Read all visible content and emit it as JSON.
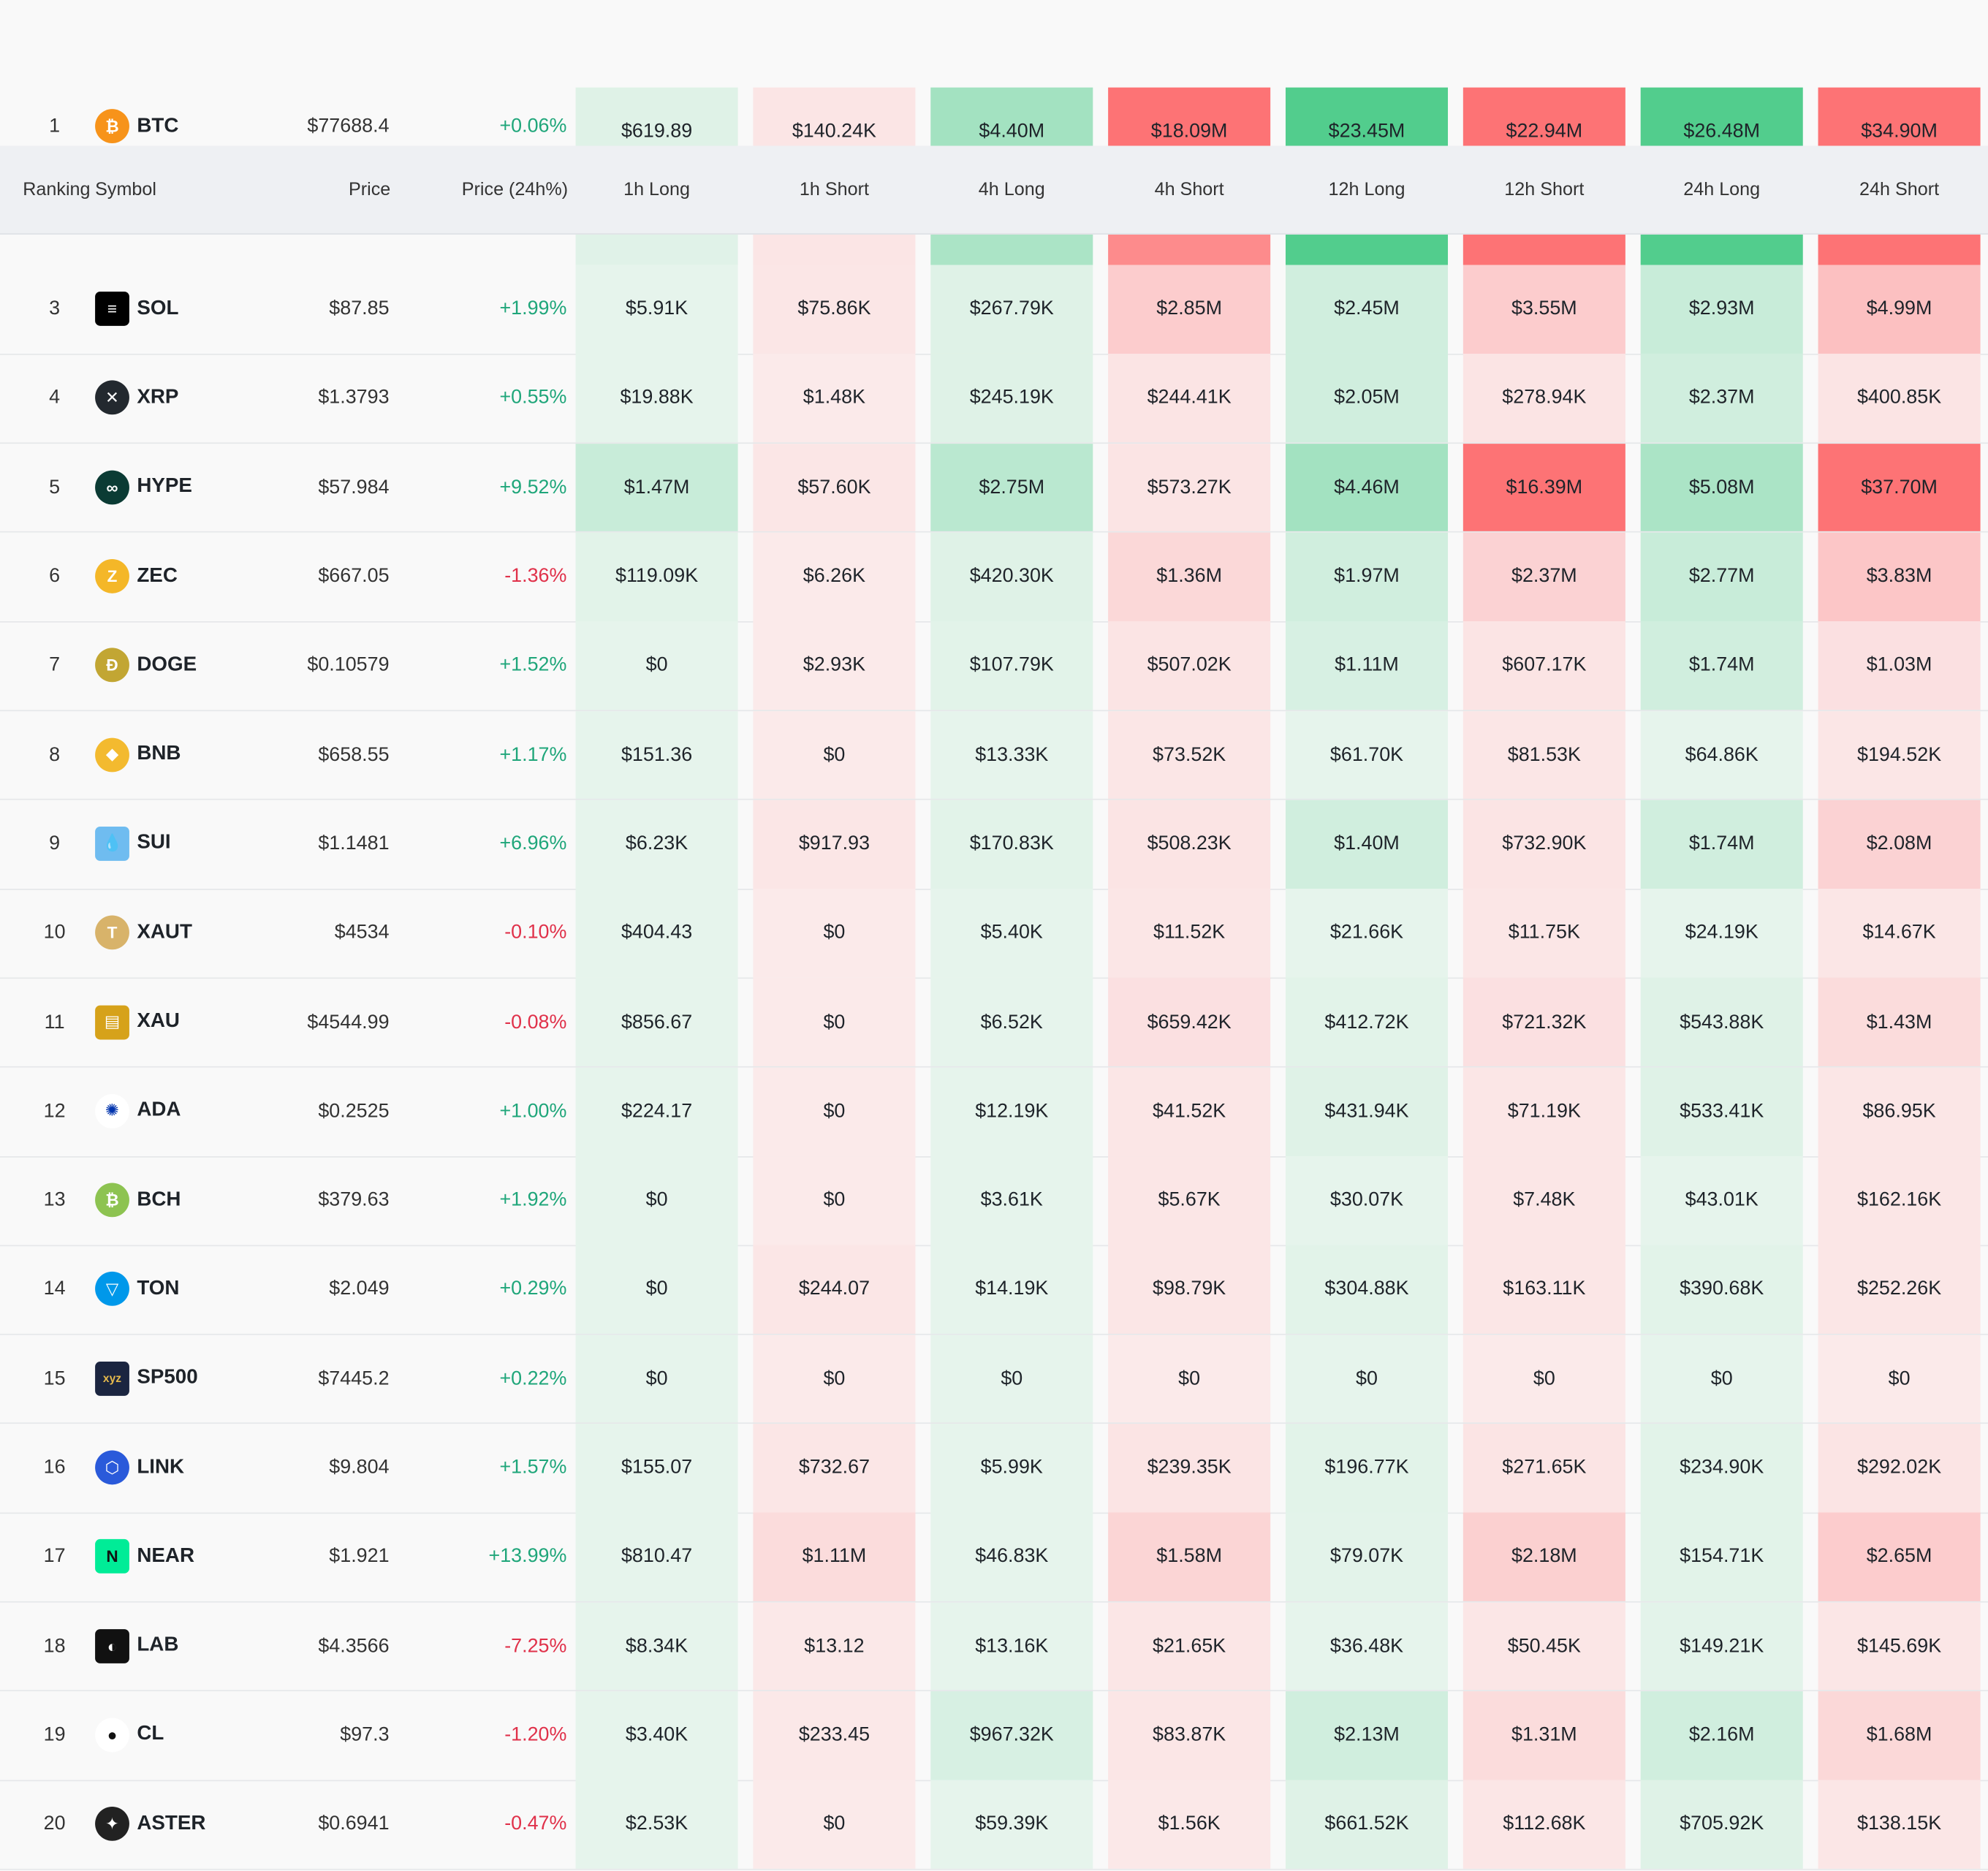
{
  "header": {
    "ranking": "Ranking",
    "symbol": "Symbol",
    "price": "Price",
    "price_change": "Price (24h%)",
    "h1_long": "1h Long",
    "h1_short": "1h Short",
    "h4_long": "4h Long",
    "h4_short": "4h Short",
    "h12_long": "12h Long",
    "h12_short": "12h Short",
    "h24_long": "24h Long",
    "h24_short": "24h Short"
  },
  "colors": {
    "long_base": "#e6f4ec",
    "short_base": "#fbeaea",
    "long_strong": "#52cd8d",
    "short_strong": "#fd7375",
    "up": "#1fa67a",
    "down": "#e0314a"
  },
  "rows": [
    {
      "rank": "1",
      "symbol": "BTC",
      "icon": "btc-icon",
      "price": "$77688.4",
      "change": "+0.06%",
      "dir": "up",
      "cells": [
        "$619.89",
        "$140.24K",
        "$4.40M",
        "$18.09M",
        "$23.45M",
        "$22.94M",
        "$26.48M",
        "$34.90M"
      ],
      "shade": [
        0.05,
        0.04,
        0.45,
        1,
        1,
        1,
        1,
        1
      ]
    },
    {
      "rank": "3",
      "symbol": "SOL",
      "icon": "sol-icon",
      "price": "$87.85",
      "change": "+1.99%",
      "dir": "up",
      "cells": [
        "$5.91K",
        "$75.86K",
        "$267.79K",
        "$2.85M",
        "$2.45M",
        "$3.55M",
        "$2.93M",
        "$4.99M"
      ],
      "shade": [
        0,
        0.03,
        0.05,
        0.25,
        0.15,
        0.25,
        0.2,
        0.35
      ]
    },
    {
      "rank": "4",
      "symbol": "XRP",
      "icon": "xrp-icon",
      "price": "$1.3793",
      "change": "+0.55%",
      "dir": "up",
      "cells": [
        "$19.88K",
        "$1.48K",
        "$245.19K",
        "$244.41K",
        "$2.05M",
        "$278.94K",
        "$2.37M",
        "$400.85K"
      ],
      "shade": [
        0,
        0,
        0.05,
        0.05,
        0.15,
        0.05,
        0.15,
        0.05
      ]
    },
    {
      "rank": "5",
      "symbol": "HYPE",
      "icon": "hype-icon",
      "price": "$57.984",
      "change": "+9.52%",
      "dir": "up",
      "cells": [
        "$1.47M",
        "$57.60K",
        "$2.75M",
        "$573.27K",
        "$4.46M",
        "$16.39M",
        "$5.08M",
        "$37.70M"
      ],
      "shade": [
        0.2,
        0.03,
        0.3,
        0.05,
        0.45,
        1,
        0.4,
        1
      ]
    },
    {
      "rank": "6",
      "symbol": "ZEC",
      "icon": "zec-icon",
      "price": "$667.05",
      "change": "-1.36%",
      "dir": "dn",
      "cells": [
        "$119.09K",
        "$6.26K",
        "$420.30K",
        "$1.36M",
        "$1.97M",
        "$2.37M",
        "$2.77M",
        "$3.83M"
      ],
      "shade": [
        0.03,
        0,
        0.05,
        0.15,
        0.15,
        0.2,
        0.2,
        0.3
      ]
    },
    {
      "rank": "7",
      "symbol": "DOGE",
      "icon": "doge-icon",
      "price": "$0.10579",
      "change": "+1.52%",
      "dir": "up",
      "cells": [
        "$0",
        "$2.93K",
        "$107.79K",
        "$507.02K",
        "$1.11M",
        "$607.17K",
        "$1.74M",
        "$1.03M"
      ],
      "shade": [
        0,
        0,
        0.03,
        0.05,
        0.1,
        0.05,
        0.15,
        0.08
      ]
    },
    {
      "rank": "8",
      "symbol": "BNB",
      "icon": "bnb-icon",
      "price": "$658.55",
      "change": "+1.17%",
      "dir": "up",
      "cells": [
        "$151.36",
        "$0",
        "$13.33K",
        "$73.52K",
        "$61.70K",
        "$81.53K",
        "$64.86K",
        "$194.52K"
      ],
      "shade": [
        0,
        0,
        0,
        0.03,
        0,
        0.03,
        0,
        0.03
      ]
    },
    {
      "rank": "9",
      "symbol": "SUI",
      "icon": "sui-icon",
      "price": "$1.1481",
      "change": "+6.96%",
      "dir": "up",
      "cells": [
        "$6.23K",
        "$917.93",
        "$170.83K",
        "$508.23K",
        "$1.40M",
        "$732.90K",
        "$1.74M",
        "$2.08M"
      ],
      "shade": [
        0,
        0.03,
        0.03,
        0.05,
        0.15,
        0.05,
        0.15,
        0.2
      ]
    },
    {
      "rank": "10",
      "symbol": "XAUT",
      "icon": "xaut-icon",
      "price": "$4534",
      "change": "-0.10%",
      "dir": "dn",
      "cells": [
        "$404.43",
        "$0",
        "$5.40K",
        "$11.52K",
        "$21.66K",
        "$11.75K",
        "$24.19K",
        "$14.67K"
      ],
      "shade": [
        0,
        0,
        0,
        0.03,
        0,
        0.03,
        0,
        0.03
      ]
    },
    {
      "rank": "11",
      "symbol": "XAU",
      "icon": "xau-icon",
      "price": "$4544.99",
      "change": "-0.08%",
      "dir": "dn",
      "cells": [
        "$856.67",
        "$0",
        "$6.52K",
        "$659.42K",
        "$412.72K",
        "$721.32K",
        "$543.88K",
        "$1.43M"
      ],
      "shade": [
        0,
        0,
        0,
        0.08,
        0.03,
        0.08,
        0.05,
        0.12
      ]
    },
    {
      "rank": "12",
      "symbol": "ADA",
      "icon": "ada-icon",
      "price": "$0.2525",
      "change": "+1.00%",
      "dir": "up",
      "cells": [
        "$224.17",
        "$0",
        "$12.19K",
        "$41.52K",
        "$431.94K",
        "$71.19K",
        "$533.41K",
        "$86.95K"
      ],
      "shade": [
        0,
        0,
        0,
        0.03,
        0.05,
        0.03,
        0.05,
        0.03
      ]
    },
    {
      "rank": "13",
      "symbol": "BCH",
      "icon": "bch-icon",
      "price": "$379.63",
      "change": "+1.92%",
      "dir": "up",
      "cells": [
        "$0",
        "$0",
        "$3.61K",
        "$5.67K",
        "$30.07K",
        "$7.48K",
        "$43.01K",
        "$162.16K"
      ],
      "shade": [
        0,
        0,
        0,
        0.03,
        0,
        0.03,
        0,
        0.03
      ]
    },
    {
      "rank": "14",
      "symbol": "TON",
      "icon": "ton-icon",
      "price": "$2.049",
      "change": "+0.29%",
      "dir": "up",
      "cells": [
        "$0",
        "$244.07",
        "$14.19K",
        "$98.79K",
        "$304.88K",
        "$163.11K",
        "$390.68K",
        "$252.26K"
      ],
      "shade": [
        0,
        0.03,
        0,
        0.03,
        0.03,
        0.03,
        0.03,
        0.03
      ]
    },
    {
      "rank": "15",
      "symbol": "SP500",
      "icon": "sp500-icon",
      "price": "$7445.2",
      "change": "+0.22%",
      "dir": "up",
      "cells": [
        "$0",
        "$0",
        "$0",
        "$0",
        "$0",
        "$0",
        "$0",
        "$0"
      ],
      "shade": [
        0,
        0,
        0,
        0,
        0,
        0,
        0,
        0
      ]
    },
    {
      "rank": "16",
      "symbol": "LINK",
      "icon": "link-icon",
      "price": "$9.804",
      "change": "+1.57%",
      "dir": "up",
      "cells": [
        "$155.07",
        "$732.67",
        "$5.99K",
        "$239.35K",
        "$196.77K",
        "$271.65K",
        "$234.90K",
        "$292.02K"
      ],
      "shade": [
        0,
        0.03,
        0,
        0.05,
        0.03,
        0.05,
        0.03,
        0.05
      ]
    },
    {
      "rank": "17",
      "symbol": "NEAR",
      "icon": "near-icon",
      "price": "$1.921",
      "change": "+13.99%",
      "dir": "up",
      "cells": [
        "$810.47",
        "$1.11M",
        "$46.83K",
        "$1.58M",
        "$79.07K",
        "$2.18M",
        "$154.71K",
        "$2.65M"
      ],
      "shade": [
        0,
        0.12,
        0,
        0.18,
        0.02,
        0.22,
        0.03,
        0.25
      ]
    },
    {
      "rank": "18",
      "symbol": "LAB",
      "icon": "lab-icon",
      "price": "$4.3566",
      "change": "-7.25%",
      "dir": "dn",
      "cells": [
        "$8.34K",
        "$13.12",
        "$13.16K",
        "$21.65K",
        "$36.48K",
        "$50.45K",
        "$149.21K",
        "$145.69K"
      ],
      "shade": [
        0,
        0.02,
        0,
        0.03,
        0,
        0.03,
        0.02,
        0.03
      ]
    },
    {
      "rank": "19",
      "symbol": "CL",
      "icon": "cl-icon",
      "price": "$97.3",
      "change": "-1.20%",
      "dir": "dn",
      "cells": [
        "$3.40K",
        "$233.45",
        "$967.32K",
        "$83.87K",
        "$2.13M",
        "$1.31M",
        "$2.16M",
        "$1.68M"
      ],
      "shade": [
        0,
        0.02,
        0.1,
        0.03,
        0.15,
        0.12,
        0.15,
        0.15
      ]
    },
    {
      "rank": "20",
      "symbol": "ASTER",
      "icon": "aster-icon",
      "price": "$0.6941",
      "change": "-0.47%",
      "dir": "dn",
      "cells": [
        "$2.53K",
        "$0",
        "$59.39K",
        "$1.56K",
        "$661.52K",
        "$112.68K",
        "$705.92K",
        "$138.15K"
      ],
      "shade": [
        0,
        0,
        0,
        0.02,
        0.05,
        0.03,
        0.05,
        0.03
      ]
    }
  ],
  "icon_glyphs": {
    "btc-icon": "₿",
    "sol-icon": "≡",
    "xrp-icon": "✕",
    "hype-icon": "∞",
    "zec-icon": "Z",
    "doge-icon": "Ð",
    "bnb-icon": "◆",
    "sui-icon": "💧",
    "xaut-icon": "T",
    "xau-icon": "▤",
    "ada-icon": "✺",
    "bch-icon": "₿",
    "ton-icon": "▽",
    "sp500-icon": "xyz",
    "link-icon": "⬡",
    "near-icon": "N",
    "lab-icon": "◐",
    "cl-icon": "●",
    "aster-icon": "✦"
  },
  "icon_colors": {
    "btc-icon": "#f7931a",
    "sol-icon": "#000000",
    "xrp-icon": "#23292f",
    "hype-icon": "#0b3b34",
    "zec-icon": "#f4b728",
    "doge-icon": "#c2a633",
    "bnb-icon": "#f3ba2f",
    "sui-icon": "#6fbcf0",
    "xaut-icon": "#d8b36a",
    "xau-icon": "#d6a21a",
    "ada-icon": "#ffffff",
    "bch-icon": "#8dc351",
    "ton-icon": "#0098ea",
    "sp500-icon": "#1b2540",
    "link-icon": "#2a5ada",
    "near-icon": "#00ec97",
    "lab-icon": "#111111",
    "cl-icon": "#ffffff",
    "aster-icon": "#222222"
  }
}
